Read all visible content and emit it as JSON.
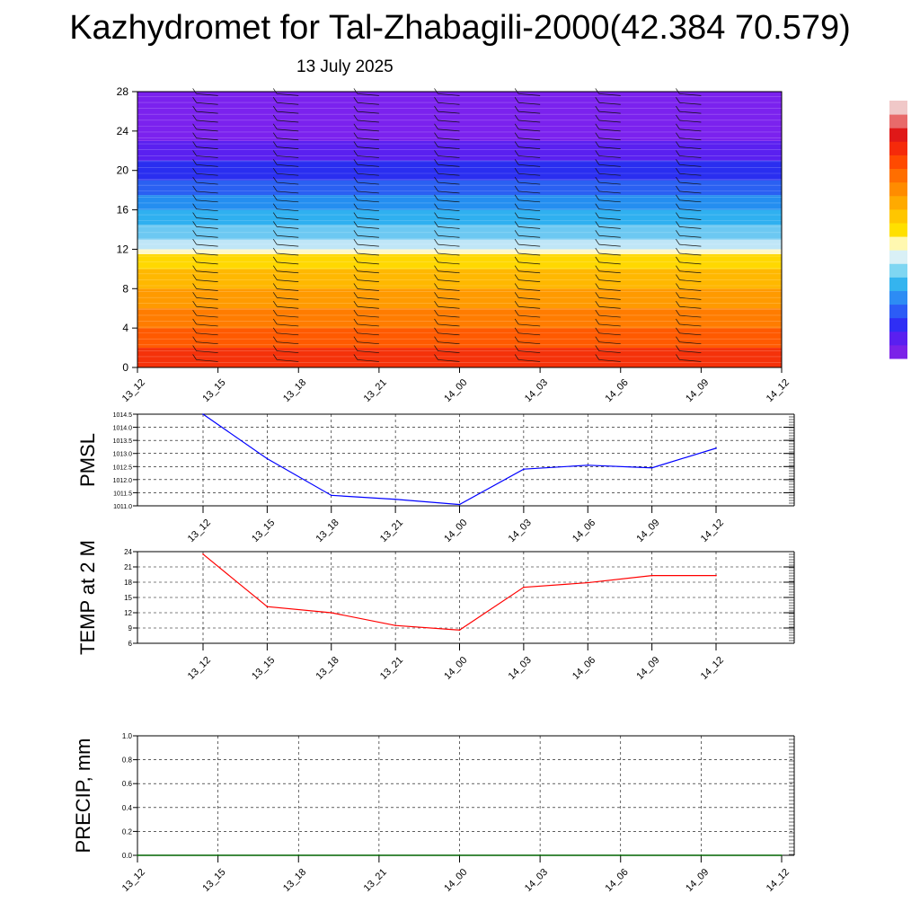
{
  "title": "Kazhydromet for Tal-Zhabagili-2000(42.384 70.579)",
  "subtitle": "13 July 2025",
  "colors": {
    "pmsl_line": "#0000ff",
    "temp_line": "#ff0000",
    "precip_line": "#006400",
    "colorbar": [
      "#7b22e8",
      "#5a1ff0",
      "#2f2ef5",
      "#2c5cf6",
      "#2d8cf4",
      "#34b4ef",
      "#7fd6f2",
      "#d9f0f6",
      "#fff8b0",
      "#ffe000",
      "#ffc600",
      "#ffaa00",
      "#ff8c00",
      "#ff6e00",
      "#ff4a00",
      "#f52a0a",
      "#e01818",
      "#e86a6a",
      "#f0c8c8"
    ]
  },
  "chart_data": [
    {
      "name": "meteogram-profile",
      "type": "heatmap",
      "x_categories": [
        "13_12",
        "13_15",
        "13_18",
        "13_21",
        "14_00",
        "14_03",
        "14_06",
        "14_09",
        "14_12"
      ],
      "ylim": [
        0,
        28
      ],
      "y_ticks": [
        0,
        4,
        8,
        12,
        16,
        20,
        24,
        28
      ],
      "color_bands": [
        {
          "from": 0,
          "to": 2,
          "color": "#f5320a"
        },
        {
          "from": 2,
          "to": 4,
          "color": "#ff5a00"
        },
        {
          "from": 4,
          "to": 6,
          "color": "#ff7c00"
        },
        {
          "from": 6,
          "to": 8,
          "color": "#ff9a00"
        },
        {
          "from": 8,
          "to": 10,
          "color": "#ffb800"
        },
        {
          "from": 10,
          "to": 11.5,
          "color": "#ffd800"
        },
        {
          "from": 11.5,
          "to": 12,
          "color": "#fff8c8"
        },
        {
          "from": 12,
          "to": 13,
          "color": "#bfe6f7"
        },
        {
          "from": 13,
          "to": 14.5,
          "color": "#6cc8f2"
        },
        {
          "from": 14.5,
          "to": 16,
          "color": "#2fb0f0"
        },
        {
          "from": 16,
          "to": 17.5,
          "color": "#248ef0"
        },
        {
          "from": 17.5,
          "to": 19,
          "color": "#2a60f2"
        },
        {
          "from": 19,
          "to": 21,
          "color": "#2a2ef0"
        },
        {
          "from": 21,
          "to": 23,
          "color": "#5a20f0"
        },
        {
          "from": 23,
          "to": 28,
          "color": "#7b22ee"
        }
      ],
      "wind_barbs": "yes"
    },
    {
      "name": "pmsl",
      "type": "line",
      "ylabel": "PMSL",
      "x": [
        "13_12",
        "13_15",
        "13_18",
        "13_21",
        "14_00",
        "14_03",
        "14_06",
        "14_09",
        "14_12"
      ],
      "values": [
        1014.5,
        1012.8,
        1011.4,
        1011.25,
        1011.05,
        1012.4,
        1012.55,
        1012.45,
        1013.2
      ],
      "ylim": [
        1011.0,
        1014.5
      ],
      "y_ticks": [
        1011.0,
        1011.5,
        1012.0,
        1012.5,
        1013.0,
        1013.5,
        1014.0,
        1014.5
      ],
      "y_tick_labels": [
        "1011.0",
        "1011.5",
        "1012.0",
        "1012.5",
        "1013.0",
        "1013.5",
        "1014.0",
        "1014.5"
      ],
      "grid": true
    },
    {
      "name": "temp",
      "type": "line",
      "ylabel": "TEMP at 2 M",
      "x": [
        "13_12",
        "13_15",
        "13_18",
        "13_21",
        "14_00",
        "14_03",
        "14_06",
        "14_09",
        "14_12"
      ],
      "values": [
        23.5,
        13.2,
        12.0,
        9.5,
        8.6,
        17.0,
        17.9,
        19.3,
        19.3
      ],
      "ylim": [
        6,
        24
      ],
      "y_ticks": [
        6,
        9,
        12,
        15,
        18,
        21,
        24
      ],
      "y_tick_labels": [
        "6",
        "9",
        "12",
        "15",
        "18",
        "21",
        "24"
      ],
      "grid": true
    },
    {
      "name": "precip",
      "type": "line",
      "ylabel": "PRECIP, mm",
      "x_categories": [
        "13_12",
        "13_15",
        "13_18",
        "13_21",
        "14_00",
        "14_03",
        "14_06",
        "14_09",
        "14_12"
      ],
      "values": [
        0,
        0,
        0,
        0,
        0,
        0,
        0,
        0,
        0
      ],
      "ylim": [
        0.0,
        1.0
      ],
      "y_ticks": [
        0.0,
        0.2,
        0.4,
        0.6,
        0.8,
        1.0
      ],
      "y_tick_labels": [
        "0.0",
        "0.2",
        "0.4",
        "0.6",
        "0.8",
        "1.0"
      ],
      "grid": true
    }
  ]
}
